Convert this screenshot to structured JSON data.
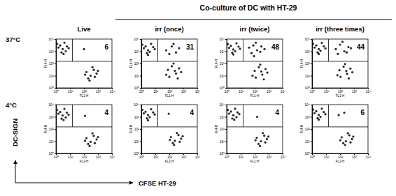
{
  "figure": {
    "title": "Co-culture of DC with HT-29",
    "columns": [
      "Live",
      "irr (once)",
      "irr (twice)",
      "irr (three times)"
    ],
    "rows": [
      "37°C",
      "4°C"
    ],
    "xlabel": "CFSE HT-29",
    "ylabel": "DC-SIGN"
  },
  "chart_data": [
    {
      "type": "scatter",
      "log": true,
      "color": "#000000",
      "marker": "dot",
      "xlabel": "FL1-H",
      "ylabel": "FL4-H",
      "xlim": [
        1,
        10000
      ],
      "ylim": [
        1,
        10000
      ],
      "xticks": [
        {
          "value": 1,
          "label": "10⁰"
        },
        {
          "value": 10,
          "label": "10¹"
        },
        {
          "value": 100,
          "label": "10²"
        },
        {
          "value": 1000,
          "label": "10³"
        },
        {
          "value": 10000,
          "label": "10⁴"
        }
      ],
      "yticks": [
        {
          "value": 1,
          "label": "10⁰"
        },
        {
          "value": 10,
          "label": "10¹"
        },
        {
          "value": 100,
          "label": "10²"
        },
        {
          "value": 1000,
          "label": "10³"
        },
        {
          "value": 10000,
          "label": "10⁴"
        }
      ],
      "gate_x": 15,
      "gate_y": 150,
      "gate_percent": 6,
      "x": [
        2,
        3,
        4,
        1.5,
        5,
        2.5,
        6,
        1.2,
        3.5,
        8,
        150,
        300,
        500,
        200,
        800,
        400,
        250,
        600,
        1000,
        120,
        100
      ],
      "values": [
        3000,
        1500,
        5000,
        2000,
        1000,
        800,
        2500,
        4000,
        600,
        1800,
        20,
        10,
        30,
        6,
        15,
        50,
        4,
        8,
        25,
        12,
        1500
      ]
    },
    {
      "type": "scatter",
      "log": true,
      "color": "#000000",
      "marker": "dot",
      "xlabel": "FL1-H",
      "ylabel": "FL4-H",
      "xlim": [
        1,
        10000
      ],
      "ylim": [
        1,
        10000
      ],
      "xticks": [
        {
          "value": 1,
          "label": "10⁰"
        },
        {
          "value": 10,
          "label": "10¹"
        },
        {
          "value": 100,
          "label": "10²"
        },
        {
          "value": 1000,
          "label": "10³"
        },
        {
          "value": 10000,
          "label": "10⁴"
        }
      ],
      "yticks": [
        {
          "value": 1,
          "label": "10⁰"
        },
        {
          "value": 10,
          "label": "10¹"
        },
        {
          "value": 100,
          "label": "10²"
        },
        {
          "value": 1000,
          "label": "10³"
        },
        {
          "value": 10000,
          "label": "10⁴"
        }
      ],
      "gate_x": 15,
      "gate_y": 150,
      "gate_percent": 31,
      "x": [
        2,
        3,
        5,
        1.5,
        4,
        2.5,
        7,
        1.2,
        3,
        9,
        80,
        150,
        300,
        100,
        500,
        200,
        400,
        700,
        60,
        250,
        60,
        150,
        300,
        100,
        500,
        200
      ],
      "values": [
        2500,
        1200,
        4000,
        1800,
        900,
        700,
        2200,
        3500,
        500,
        1500,
        30,
        60,
        15,
        8,
        40,
        100,
        6,
        20,
        12,
        25,
        1200,
        2500,
        800,
        600,
        1800,
        4000
      ]
    },
    {
      "type": "scatter",
      "log": true,
      "color": "#000000",
      "marker": "dot",
      "xlabel": "FL1-H",
      "ylabel": "FL4-H",
      "xlim": [
        1,
        10000
      ],
      "ylim": [
        1,
        10000
      ],
      "xticks": [
        {
          "value": 1,
          "label": "10⁰"
        },
        {
          "value": 10,
          "label": "10¹"
        },
        {
          "value": 100,
          "label": "10²"
        },
        {
          "value": 1000,
          "label": "10³"
        },
        {
          "value": 10000,
          "label": "10⁴"
        }
      ],
      "yticks": [
        {
          "value": 1,
          "label": "10⁰"
        },
        {
          "value": 10,
          "label": "10¹"
        },
        {
          "value": 100,
          "label": "10²"
        },
        {
          "value": 1000,
          "label": "10³"
        },
        {
          "value": 10000,
          "label": "10⁴"
        }
      ],
      "gate_x": 15,
      "gate_y": 150,
      "gate_percent": 48,
      "x": [
        2,
        3,
        5,
        1.5,
        4,
        2.5,
        7,
        1.2,
        3,
        9,
        100,
        200,
        350,
        120,
        600,
        250,
        450,
        800,
        70,
        300,
        40,
        80,
        150,
        300,
        60,
        500,
        120,
        250,
        90
      ],
      "values": [
        2800,
        1400,
        4500,
        1900,
        1000,
        750,
        2400,
        3800,
        550,
        1600,
        25,
        50,
        12,
        7,
        35,
        80,
        5,
        18,
        10,
        22,
        2000,
        3000,
        1200,
        2500,
        700,
        1500,
        5000,
        900,
        400
      ]
    },
    {
      "type": "scatter",
      "log": true,
      "color": "#000000",
      "marker": "dot",
      "xlabel": "FL1-H",
      "ylabel": "FL4-H",
      "xlim": [
        1,
        10000
      ],
      "ylim": [
        1,
        10000
      ],
      "xticks": [
        {
          "value": 1,
          "label": "10⁰"
        },
        {
          "value": 10,
          "label": "10¹"
        },
        {
          "value": 100,
          "label": "10²"
        },
        {
          "value": 1000,
          "label": "10³"
        },
        {
          "value": 10000,
          "label": "10⁴"
        }
      ],
      "yticks": [
        {
          "value": 1,
          "label": "10⁰"
        },
        {
          "value": 10,
          "label": "10¹"
        },
        {
          "value": 100,
          "label": "10²"
        },
        {
          "value": 1000,
          "label": "10³"
        },
        {
          "value": 10000,
          "label": "10⁴"
        }
      ],
      "gate_x": 15,
      "gate_y": 150,
      "gate_percent": 44,
      "x": [
        2,
        3,
        5,
        1.5,
        4,
        2.5,
        7,
        1.2,
        3,
        9,
        90,
        180,
        320,
        110,
        550,
        230,
        420,
        750,
        65,
        280,
        50,
        100,
        200,
        400,
        70,
        150,
        300,
        600
      ],
      "values": [
        3000,
        1500,
        4800,
        2000,
        1100,
        800,
        2600,
        4000,
        600,
        1700,
        28,
        55,
        14,
        8,
        38,
        90,
        6,
        19,
        11,
        24,
        1500,
        3500,
        1000,
        2200,
        600,
        6000,
        800,
        1800
      ]
    },
    {
      "type": "scatter",
      "log": true,
      "color": "#000000",
      "marker": "dot",
      "xlabel": "FL1-H",
      "ylabel": "FL4-H",
      "xlim": [
        1,
        10000
      ],
      "ylim": [
        1,
        10000
      ],
      "xticks": [
        {
          "value": 1,
          "label": "10⁰"
        },
        {
          "value": 10,
          "label": "10¹"
        },
        {
          "value": 100,
          "label": "10²"
        },
        {
          "value": 1000,
          "label": "10³"
        },
        {
          "value": 10000,
          "label": "10⁴"
        }
      ],
      "yticks": [
        {
          "value": 1,
          "label": "10⁰"
        },
        {
          "value": 10,
          "label": "10¹"
        },
        {
          "value": 100,
          "label": "10²"
        },
        {
          "value": 1000,
          "label": "10³"
        },
        {
          "value": 10000,
          "label": "10⁴"
        }
      ],
      "gate_x": 15,
      "gate_y": 150,
      "gate_percent": 4,
      "x": [
        2,
        3,
        4,
        1.5,
        5,
        2.5,
        6,
        1.2,
        3.5,
        8,
        150,
        300,
        500,
        200,
        800,
        400,
        250,
        600,
        1000,
        120,
        120
      ],
      "values": [
        2500,
        1300,
        4500,
        1800,
        900,
        700,
        2200,
        3600,
        550,
        1500,
        18,
        9,
        28,
        6,
        14,
        45,
        4,
        7,
        22,
        11,
        1200
      ]
    },
    {
      "type": "scatter",
      "log": true,
      "color": "#000000",
      "marker": "dot",
      "xlabel": "FL1-H",
      "ylabel": "FL4-H",
      "xlim": [
        1,
        10000
      ],
      "ylim": [
        1,
        10000
      ],
      "xticks": [
        {
          "value": 1,
          "label": "10⁰"
        },
        {
          "value": 10,
          "label": "10¹"
        },
        {
          "value": 100,
          "label": "10²"
        },
        {
          "value": 1000,
          "label": "10³"
        },
        {
          "value": 10000,
          "label": "10⁴"
        }
      ],
      "yticks": [
        {
          "value": 1,
          "label": "10⁰"
        },
        {
          "value": 10,
          "label": "10¹"
        },
        {
          "value": 100,
          "label": "10²"
        },
        {
          "value": 1000,
          "label": "10³"
        },
        {
          "value": 10000,
          "label": "10⁴"
        }
      ],
      "gate_x": 15,
      "gate_y": 150,
      "gate_percent": 4,
      "x": [
        2,
        3,
        5,
        1.5,
        4,
        2.5,
        7,
        1.2,
        3,
        9,
        130,
        250,
        450,
        180,
        700,
        350,
        220,
        550,
        900,
        110,
        90
      ],
      "values": [
        2600,
        1400,
        4200,
        1900,
        950,
        750,
        2300,
        3700,
        520,
        1550,
        22,
        11,
        32,
        7,
        16,
        48,
        5,
        9,
        26,
        13,
        1800
      ]
    },
    {
      "type": "scatter",
      "log": true,
      "color": "#000000",
      "marker": "dot",
      "xlabel": "FL1-H",
      "ylabel": "FL4-H",
      "xlim": [
        1,
        10000
      ],
      "ylim": [
        1,
        10000
      ],
      "xticks": [
        {
          "value": 1,
          "label": "10⁰"
        },
        {
          "value": 10,
          "label": "10¹"
        },
        {
          "value": 100,
          "label": "10²"
        },
        {
          "value": 1000,
          "label": "10³"
        },
        {
          "value": 10000,
          "label": "10⁴"
        }
      ],
      "yticks": [
        {
          "value": 1,
          "label": "10⁰"
        },
        {
          "value": 10,
          "label": "10¹"
        },
        {
          "value": 100,
          "label": "10²"
        },
        {
          "value": 1000,
          "label": "10³"
        },
        {
          "value": 10000,
          "label": "10⁴"
        }
      ],
      "gate_x": 15,
      "gate_y": 150,
      "gate_percent": 4,
      "x": [
        2,
        3,
        4,
        1.5,
        5,
        2.5,
        6,
        1.2,
        3.5,
        8,
        140,
        280,
        480,
        190,
        750,
        380,
        240,
        580,
        950,
        115,
        150
      ],
      "values": [
        2700,
        1350,
        4600,
        1850,
        950,
        720,
        2300,
        3700,
        580,
        1650,
        19,
        10,
        29,
        6,
        15,
        47,
        4,
        8,
        24,
        12,
        1000
      ]
    },
    {
      "type": "scatter",
      "log": true,
      "color": "#000000",
      "marker": "dot",
      "xlabel": "FL1-H",
      "ylabel": "FL4-H",
      "xlim": [
        1,
        10000
      ],
      "ylim": [
        1,
        10000
      ],
      "xticks": [
        {
          "value": 1,
          "label": "10⁰"
        },
        {
          "value": 10,
          "label": "10¹"
        },
        {
          "value": 100,
          "label": "10²"
        },
        {
          "value": 1000,
          "label": "10³"
        },
        {
          "value": 10000,
          "label": "10⁴"
        }
      ],
      "yticks": [
        {
          "value": 1,
          "label": "10⁰"
        },
        {
          "value": 10,
          "label": "10¹"
        },
        {
          "value": 100,
          "label": "10²"
        },
        {
          "value": 1000,
          "label": "10³"
        },
        {
          "value": 10000,
          "label": "10⁴"
        }
      ],
      "gate_x": 15,
      "gate_y": 150,
      "gate_percent": 6,
      "x": [
        2,
        3,
        5,
        1.5,
        4,
        2.5,
        7,
        1.2,
        3,
        9,
        130,
        260,
        460,
        170,
        720,
        360,
        230,
        560,
        880,
        105,
        80,
        200
      ],
      "values": [
        2900,
        1450,
        4700,
        2000,
        1000,
        780,
        2450,
        3900,
        600,
        1650,
        21,
        10,
        31,
        7,
        15,
        46,
        5,
        8,
        24,
        12,
        1400,
        2200
      ]
    }
  ]
}
